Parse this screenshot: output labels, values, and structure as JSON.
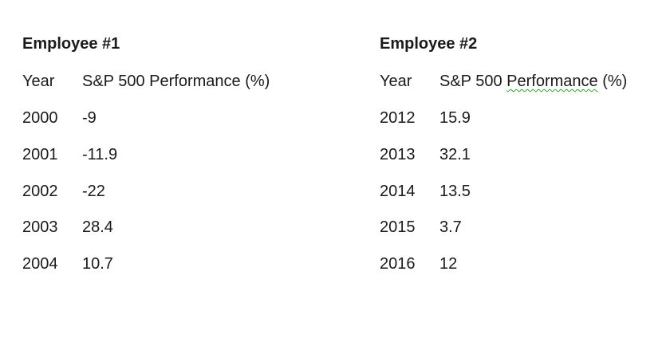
{
  "employee1": {
    "title": "Employee #1",
    "header": {
      "year": "Year",
      "performance": "S&P 500 Performance (%)"
    },
    "rows": [
      {
        "year": "2000",
        "value": "-9"
      },
      {
        "year": "2001",
        "value": "-11.9"
      },
      {
        "year": "2002",
        "value": "-22"
      },
      {
        "year": "2003",
        "value": "28.4"
      },
      {
        "year": "2004",
        "value": "10.7"
      }
    ]
  },
  "employee2": {
    "title": "Employee #2",
    "header": {
      "year": "Year",
      "performance_prefix": "S&P 500 ",
      "performance_word": "Performance",
      "performance_suffix": " (%)"
    },
    "rows": [
      {
        "year": "2012",
        "value": "15.9"
      },
      {
        "year": "2013",
        "value": "32.1"
      },
      {
        "year": "2014",
        "value": "13.5"
      },
      {
        "year": "2015",
        "value": "3.7"
      },
      {
        "year": "2016",
        "value": "12"
      }
    ]
  },
  "colors": {
    "text": "#1a1a1a",
    "spellcheck_underline": "#2aa82a"
  }
}
